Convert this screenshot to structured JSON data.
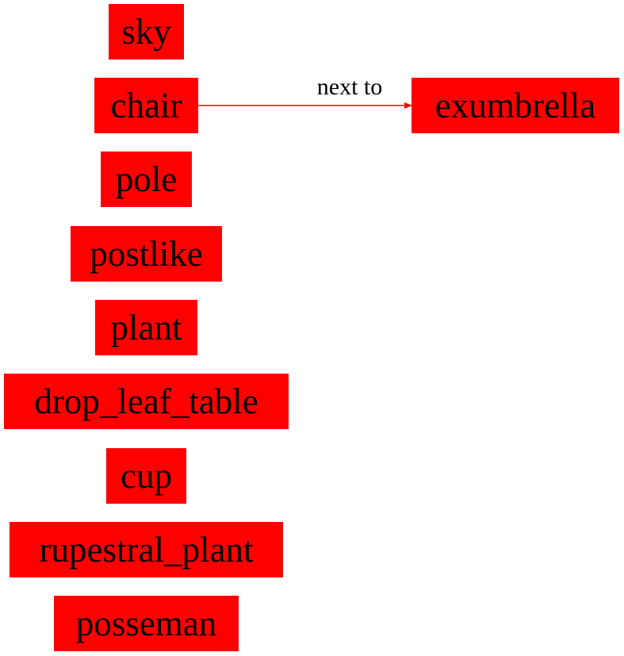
{
  "graph": {
    "node_color": "#ff0000",
    "edge_color": "#ff0000",
    "nodes": {
      "sky": "sky",
      "chair": "chair",
      "pole": "pole",
      "postlike": "postlike",
      "plant": "plant",
      "drop_leaf_table": "drop_leaf_table",
      "cup": "cup",
      "rupestral_plant": "rupestral_plant",
      "posseman": "posseman",
      "exumbrella": "exumbrella"
    },
    "edges": [
      {
        "from": "chair",
        "to": "exumbrella",
        "label": "next to"
      }
    ]
  }
}
